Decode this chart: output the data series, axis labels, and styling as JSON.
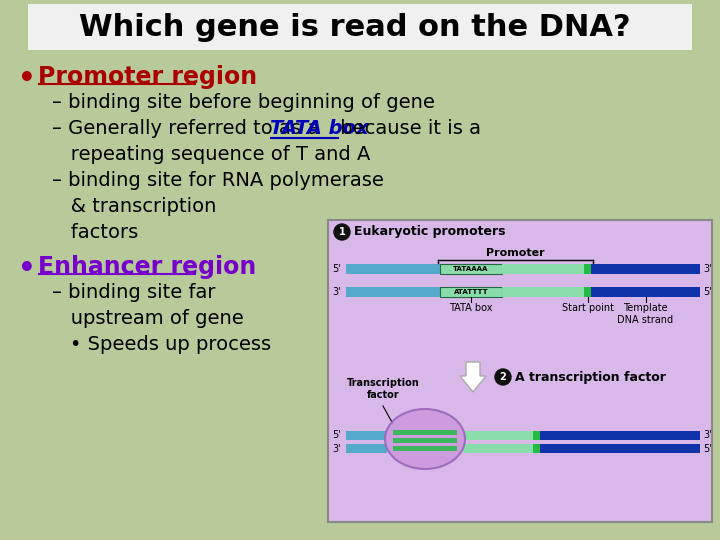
{
  "title": "Which gene is read on the DNA?",
  "background_color": "#b8c99a",
  "title_bg_color": "#f0f0f0",
  "title_color": "#000000",
  "bullet1_text": "Promoter region",
  "bullet1_color": "#aa0000",
  "sub1a": "– binding site before beginning of gene",
  "sub1b_pre": "– Generally referred to as a ",
  "sub1b_italic": "TATA box",
  "sub1b_italic_color": "#0000bb",
  "sub1b_post": " because it is a",
  "sub1b2": "   repeating sequence of T and A",
  "sub1c": "– binding site for RNA polymerase",
  "sub1c2": "   & transcription",
  "sub1c3": "   factors",
  "bullet2_text": "Enhancer region",
  "bullet2_color": "#7700cc",
  "sub2a": "– binding site far",
  "sub2a2": "   upstream of gene",
  "sub2b": "• Speeds up process",
  "text_color": "#000000",
  "diagram_bg": "#d8b8e8",
  "diagram_border": "#888888",
  "dna_blue_dark": "#1133aa",
  "dna_blue_light": "#55aacc",
  "dna_green_light": "#88ddaa",
  "dna_green": "#22bb44",
  "tata_bg": "#88ddaa",
  "tata_border": "#226644",
  "arrow_fill": "#ffffff",
  "arrow_edge": "#aaaaaa",
  "sphere_fill": "#cc99dd",
  "sphere_edge": "#9966bb",
  "num_circle_color": "#111111",
  "diagram_label1": "Eukaryotic promoters",
  "diagram_label2": "A transcription factor",
  "promoter_label": "Promoter",
  "tata_label": "TATA box",
  "start_label": "Start point",
  "template_label": "Template\nDNA strand",
  "tf_label": "Transcription\nfactor"
}
